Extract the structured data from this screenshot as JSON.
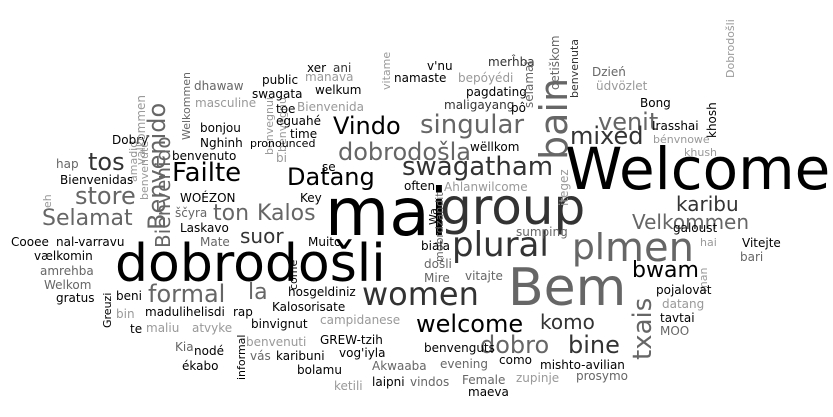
{
  "colors": {
    "black": "#000000",
    "dark": "#333333",
    "mid": "#666666",
    "light": "#999999",
    "pale": "#bbbbbb"
  },
  "words": [
    {
      "text": "mai",
      "shade": "black"
    },
    {
      "text": "Welcome",
      "shade": "black"
    },
    {
      "text": "dobrodošli",
      "shade": "black"
    },
    {
      "text": "group",
      "shade": "dark"
    },
    {
      "text": "Bem",
      "shade": "mid"
    },
    {
      "text": "plural",
      "shade": "dark"
    },
    {
      "text": "men",
      "shade": "mid"
    },
    {
      "text": "pl",
      "shade": "mid"
    },
    {
      "text": "women",
      "shade": "dark"
    },
    {
      "text": "bain",
      "shade": "mid"
    },
    {
      "text": "Failte",
      "shade": "black"
    },
    {
      "text": "Vindo",
      "shade": "black"
    },
    {
      "text": "Datang",
      "shade": "black"
    },
    {
      "text": "dobrodošla",
      "shade": "mid"
    },
    {
      "text": "singular",
      "shade": "mid"
    },
    {
      "text": "swagatham",
      "shade": "dark"
    },
    {
      "text": "venit",
      "shade": "mid"
    },
    {
      "text": "mixed",
      "shade": "dark"
    },
    {
      "text": "tos",
      "shade": "dark"
    },
    {
      "text": "store",
      "shade": "mid"
    },
    {
      "text": "Selamat",
      "shade": "mid"
    },
    {
      "text": "ton",
      "shade": "mid"
    },
    {
      "text": "Kalos",
      "shade": "mid"
    },
    {
      "text": "suor",
      "shade": "dark"
    },
    {
      "text": "formal",
      "shade": "mid"
    },
    {
      "text": "la",
      "shade": "mid"
    },
    {
      "text": "welcome",
      "shade": "black"
    },
    {
      "text": "komo",
      "shade": "dark"
    },
    {
      "text": "dobro",
      "shade": "mid"
    },
    {
      "text": "bine",
      "shade": "dark"
    },
    {
      "text": "Velkommen",
      "shade": "mid"
    },
    {
      "text": "karibu",
      "shade": "dark"
    },
    {
      "text": "bwam",
      "shade": "black"
    },
    {
      "text": "Benvenido",
      "shade": "mid"
    },
    {
      "text": "Bienvenido",
      "shade": "mid"
    },
    {
      "text": "txais",
      "shade": "mid"
    },
    {
      "text": "benvenuta",
      "shade": "dark"
    },
    {
      "text": "Dzień",
      "shade": "mid"
    },
    {
      "text": "üdvözlet",
      "shade": "light"
    },
    {
      "text": "merĥba",
      "shade": "dark"
    },
    {
      "text": "bepóyédi",
      "shade": "light"
    },
    {
      "text": "v'nu",
      "shade": "black"
    },
    {
      "text": "namaste",
      "shade": "black"
    },
    {
      "text": "pagdating",
      "shade": "black"
    },
    {
      "text": "maligayang",
      "shade": "dark"
    },
    {
      "text": "pô",
      "shade": "black"
    },
    {
      "text": "wëllkom",
      "shade": "black"
    },
    {
      "text": "Bong",
      "shade": "black"
    },
    {
      "text": "Irasshai",
      "shade": "black"
    },
    {
      "text": "bénvnowe",
      "shade": "light"
    },
    {
      "text": "khush",
      "shade": "light"
    },
    {
      "text": "khosh",
      "shade": "black"
    },
    {
      "text": "public",
      "shade": "black"
    },
    {
      "text": "swagata",
      "shade": "black"
    },
    {
      "text": "welkum",
      "shade": "black"
    },
    {
      "text": "manava",
      "shade": "light"
    },
    {
      "text": "xer",
      "shade": "black"
    },
    {
      "text": "ani",
      "shade": "dark"
    },
    {
      "text": "dhawaw",
      "shade": "mid"
    },
    {
      "text": "masculine",
      "shade": "light"
    },
    {
      "text": "toe",
      "shade": "black"
    },
    {
      "text": "Bienvenida",
      "shade": "light"
    },
    {
      "text": "bonjou",
      "shade": "black"
    },
    {
      "text": "eguahé",
      "shade": "black"
    },
    {
      "text": "time",
      "shade": "black"
    },
    {
      "text": "Nghinh",
      "shade": "black"
    },
    {
      "text": "benvenuto",
      "shade": "black"
    },
    {
      "text": "pronounced",
      "shade": "black"
    },
    {
      "text": "Key",
      "shade": "black"
    },
    {
      "text": "se",
      "shade": "black"
    },
    {
      "text": "often",
      "shade": "black"
    },
    {
      "text": "Ahlanwilcome",
      "shade": "light"
    },
    {
      "text": "Bienvenidas",
      "shade": "black"
    },
    {
      "text": "Dobry",
      "shade": "black"
    },
    {
      "text": "hap",
      "shade": "mid"
    },
    {
      "text": "WOÉZON",
      "shade": "black"
    },
    {
      "text": "ščyra",
      "shade": "mid"
    },
    {
      "text": "Laskavo",
      "shade": "black"
    },
    {
      "text": "Mate",
      "shade": "mid"
    },
    {
      "text": "Muito",
      "shade": "black"
    },
    {
      "text": "Cooee",
      "shade": "black"
    },
    {
      "text": "nal-varravu",
      "shade": "black"
    },
    {
      "text": "vælkomin",
      "shade": "black"
    },
    {
      "text": "amrehba",
      "shade": "mid"
    },
    {
      "text": "Welkom",
      "shade": "mid"
    },
    {
      "text": "gratus",
      "shade": "black"
    },
    {
      "text": "beni",
      "shade": "black"
    },
    {
      "text": "madulihelisdi",
      "shade": "black"
    },
    {
      "text": "rap",
      "shade": "black"
    },
    {
      "text": "hosgeldiniz",
      "shade": "black"
    },
    {
      "text": "Kalosorisate",
      "shade": "black"
    },
    {
      "text": "binvignut",
      "shade": "black"
    },
    {
      "text": "campidanese",
      "shade": "light"
    },
    {
      "text": "maliu",
      "shade": "light"
    },
    {
      "text": "atvyke",
      "shade": "light"
    },
    {
      "text": "bin",
      "shade": "light"
    },
    {
      "text": "te",
      "shade": "black"
    },
    {
      "text": "Kia",
      "shade": "mid"
    },
    {
      "text": "nodé",
      "shade": "black"
    },
    {
      "text": "ékabo",
      "shade": "black"
    },
    {
      "text": "benvenuti",
      "shade": "light"
    },
    {
      "text": "GREW-tzih",
      "shade": "black"
    },
    {
      "text": "vog'iyla",
      "shade": "black"
    },
    {
      "text": "karibuni",
      "shade": "black"
    },
    {
      "text": "bolamu",
      "shade": "black"
    },
    {
      "text": "vás",
      "shade": "mid"
    },
    {
      "text": "benvenguts",
      "shade": "black"
    },
    {
      "text": "evening",
      "shade": "mid"
    },
    {
      "text": "como",
      "shade": "black"
    },
    {
      "text": "mishto-avilian",
      "shade": "black"
    },
    {
      "text": "prosymo",
      "shade": "mid"
    },
    {
      "text": "Akwaaba",
      "shade": "mid"
    },
    {
      "text": "Female",
      "shade": "mid"
    },
    {
      "text": "zupinje",
      "shade": "light"
    },
    {
      "text": "maeva",
      "shade": "black"
    },
    {
      "text": "ketili",
      "shade": "light"
    },
    {
      "text": "laipni",
      "shade": "black"
    },
    {
      "text": "vindos",
      "shade": "mid"
    },
    {
      "text": "sumping",
      "shade": "mid"
    },
    {
      "text": "biala",
      "shade": "black"
    },
    {
      "text": "Mire",
      "shade": "mid"
    },
    {
      "text": "vitajte",
      "shade": "mid"
    },
    {
      "text": "došli",
      "shade": "mid"
    },
    {
      "text": "galoust",
      "shade": "black"
    },
    {
      "text": "hai",
      "shade": "light"
    },
    {
      "text": "Vitejte",
      "shade": "black"
    },
    {
      "text": "bari",
      "shade": "mid"
    },
    {
      "text": "pojalovat",
      "shade": "black"
    },
    {
      "text": "datang",
      "shade": "light"
    },
    {
      "text": "tavtai",
      "shade": "black"
    },
    {
      "text": "MOO",
      "shade": "mid"
    },
    {
      "text": "selamat",
      "shade": "mid"
    },
    {
      "text": "oetiškom",
      "shade": "light"
    },
    {
      "text": "vitame",
      "shade": "light"
    },
    {
      "text": "Dobrodošli",
      "shade": "mid"
    },
    {
      "text": "Welkommen",
      "shade": "light"
    },
    {
      "text": "benvegnui",
      "shade": "light"
    },
    {
      "text": "benvegnu",
      "shade": "light"
    },
    {
      "text": "bi",
      "shade": "light"
    },
    {
      "text": "välkommen",
      "shade": "light"
    },
    {
      "text": "âmadid",
      "shade": "light"
    },
    {
      "text": "eh",
      "shade": "light"
    },
    {
      "text": "benvenute",
      "shade": "black"
    },
    {
      "text": "Greuzi",
      "shade": "black"
    },
    {
      "text": "informal",
      "shade": "black"
    },
    {
      "text": "come",
      "shade": "black"
    },
    {
      "text": "Wa",
      "shade": "light"
    },
    {
      "text": "itegez",
      "shade": "mid"
    },
    {
      "text": "mobrdzandit",
      "shade": "light"
    },
    {
      "text": "man",
      "shade": "black"
    }
  ]
}
